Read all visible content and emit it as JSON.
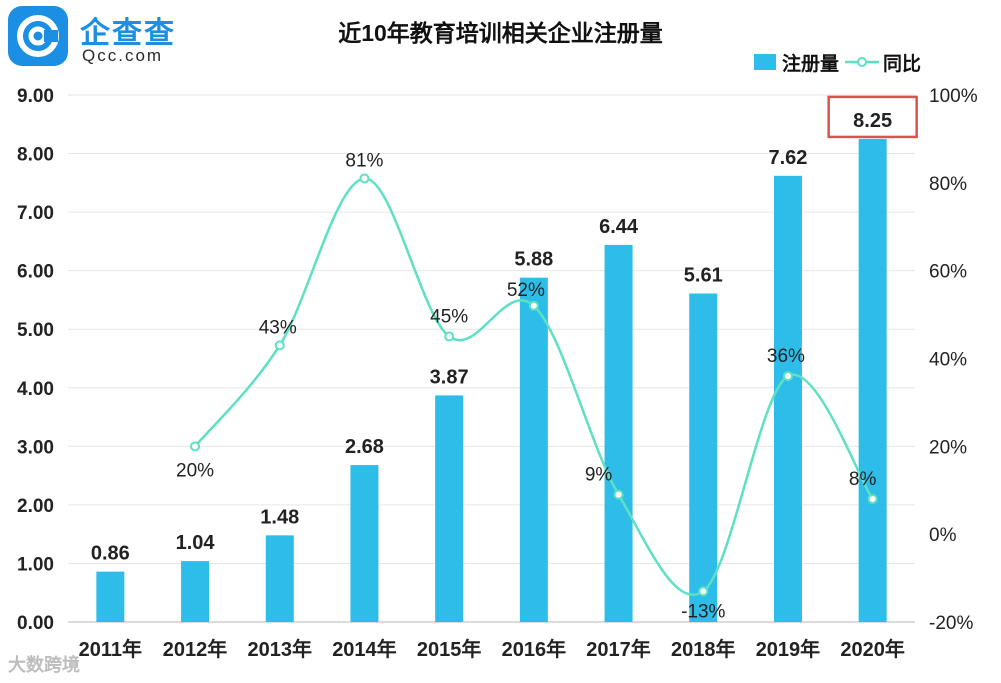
{
  "logo": {
    "name": "企查查",
    "sub": "Qcc.com"
  },
  "watermark": "大数跨境",
  "chart_data": {
    "type": "bar",
    "title": "近10年教育培训相关企业注册量",
    "categories": [
      "2011年",
      "2012年",
      "2013年",
      "2014年",
      "2015年",
      "2016年",
      "2017年",
      "2018年",
      "2019年",
      "2020年"
    ],
    "series": [
      {
        "name": "注册量",
        "type": "bar",
        "axis": "left",
        "values": [
          0.86,
          1.04,
          1.48,
          2.68,
          3.87,
          5.88,
          6.44,
          5.61,
          7.62,
          8.25
        ],
        "labels": [
          "0.86",
          "1.04",
          "1.48",
          "2.68",
          "3.87",
          "5.88",
          "6.44",
          "5.61",
          "7.62",
          "8.25"
        ],
        "color": "#2ebde8"
      },
      {
        "name": "同比",
        "type": "line",
        "axis": "right",
        "values": [
          null,
          20,
          43,
          81,
          45,
          52,
          9,
          -13,
          36,
          8
        ],
        "labels": [
          "",
          "20%",
          "43%",
          "81%",
          "45%",
          "52%",
          "9%",
          "-13%",
          "36%",
          "8%"
        ],
        "color": "#5ee0c4"
      }
    ],
    "y_left": {
      "min": 0,
      "max": 9,
      "ticks": [
        "0.00",
        "1.00",
        "2.00",
        "3.00",
        "4.00",
        "5.00",
        "6.00",
        "7.00",
        "8.00",
        "9.00"
      ]
    },
    "y_right": {
      "min": -20,
      "max": 100,
      "ticks": [
        "-20%",
        "0%",
        "20%",
        "40%",
        "60%",
        "80%",
        "100%"
      ]
    },
    "grid": true,
    "legend": "top-right",
    "highlight": {
      "index": 9,
      "color": "#d9534f"
    }
  }
}
